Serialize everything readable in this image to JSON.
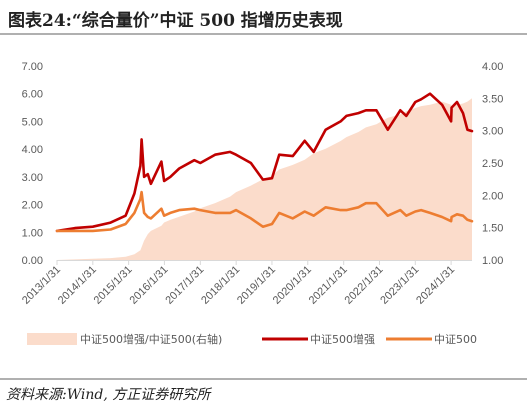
{
  "header": {
    "title": "图表24:“综合量价”中证 500 指增历史表现"
  },
  "footer": {
    "source": "资料来源:Wind, 方正证券研究所"
  },
  "colors": {
    "dark_red": "#c00000",
    "orange": "#ed7d31",
    "area": "#fbdccb",
    "axis_text": "#595959",
    "tick": "#d9d9d9"
  },
  "chart_data": {
    "type": "line",
    "x_ticks": [
      "2013/1/31",
      "2014/1/31",
      "2015/1/31",
      "2016/1/31",
      "2017/1/31",
      "2018/1/31",
      "2019/1/31",
      "2020/1/31",
      "2021/1/31",
      "2022/1/31",
      "2023/1/31",
      "2024/1/31"
    ],
    "x": [
      "2013/1/31",
      "2013/7/31",
      "2014/1/31",
      "2014/7/31",
      "2014/12/31",
      "2015/3/31",
      "2015/5/31",
      "2015/6/12",
      "2015/7/8",
      "2015/8/15",
      "2015/9/15",
      "2015/12/31",
      "2016/1/28",
      "2016/3/31",
      "2016/6/30",
      "2016/11/30",
      "2017/1/31",
      "2017/6/30",
      "2017/11/30",
      "2018/1/31",
      "2018/6/30",
      "2018/10/31",
      "2019/1/31",
      "2019/4/15",
      "2019/8/31",
      "2019/12/31",
      "2020/3/31",
      "2020/7/31",
      "2020/12/31",
      "2021/2/28",
      "2021/6/30",
      "2021/9/15",
      "2021/12/31",
      "2022/4/26",
      "2022/8/31",
      "2022/10/31",
      "2023/1/31",
      "2023/3/31",
      "2023/6/30",
      "2023/10/31",
      "2024/1/31",
      "2024/2/5",
      "2024/3/31",
      "2024/5/31",
      "2024/7/15",
      "2024/8/31"
    ],
    "ylim": [
      0,
      7
    ],
    "yticks": [
      "0.00",
      "1.00",
      "2.00",
      "3.00",
      "4.00",
      "5.00",
      "6.00",
      "7.00"
    ],
    "y2lim": [
      1,
      4
    ],
    "y2ticks": [
      "1.00",
      "1.50",
      "2.00",
      "2.50",
      "3.00",
      "3.50",
      "4.00"
    ],
    "series": [
      {
        "name": "中证500增强/中证500(右轴)",
        "axis": "right",
        "type": "area",
        "values": [
          1.0,
          1.01,
          1.02,
          1.03,
          1.05,
          1.09,
          1.15,
          1.2,
          1.3,
          1.4,
          1.45,
          1.53,
          1.58,
          1.62,
          1.67,
          1.75,
          1.8,
          1.88,
          1.98,
          2.05,
          2.15,
          2.25,
          2.3,
          2.4,
          2.47,
          2.55,
          2.65,
          2.72,
          2.84,
          2.9,
          2.98,
          3.05,
          3.1,
          3.2,
          3.25,
          3.3,
          3.35,
          3.38,
          3.4,
          3.45,
          3.4,
          3.38,
          3.4,
          3.42,
          3.45,
          3.5
        ]
      },
      {
        "name": "中证500增强",
        "axis": "left",
        "type": "line",
        "values": [
          1.05,
          1.15,
          1.2,
          1.35,
          1.6,
          2.4,
          3.4,
          4.35,
          3.0,
          3.1,
          2.75,
          3.55,
          2.85,
          3.0,
          3.3,
          3.6,
          3.5,
          3.8,
          3.9,
          3.8,
          3.5,
          2.9,
          2.95,
          3.8,
          3.75,
          4.3,
          3.9,
          4.7,
          5.0,
          5.2,
          5.3,
          5.4,
          5.4,
          4.7,
          5.4,
          5.2,
          5.7,
          5.8,
          6.0,
          5.6,
          5.0,
          5.5,
          5.7,
          5.3,
          4.7,
          4.65
        ]
      },
      {
        "name": "中证500",
        "axis": "left",
        "type": "line",
        "values": [
          1.05,
          1.05,
          1.05,
          1.1,
          1.3,
          1.7,
          2.2,
          2.45,
          1.7,
          1.55,
          1.5,
          1.85,
          1.6,
          1.7,
          1.8,
          1.85,
          1.8,
          1.7,
          1.7,
          1.8,
          1.5,
          1.2,
          1.3,
          1.7,
          1.5,
          1.75,
          1.6,
          1.9,
          1.8,
          1.8,
          1.9,
          2.05,
          2.05,
          1.6,
          1.8,
          1.6,
          1.75,
          1.8,
          1.7,
          1.55,
          1.4,
          1.55,
          1.65,
          1.6,
          1.45,
          1.4
        ]
      }
    ]
  }
}
